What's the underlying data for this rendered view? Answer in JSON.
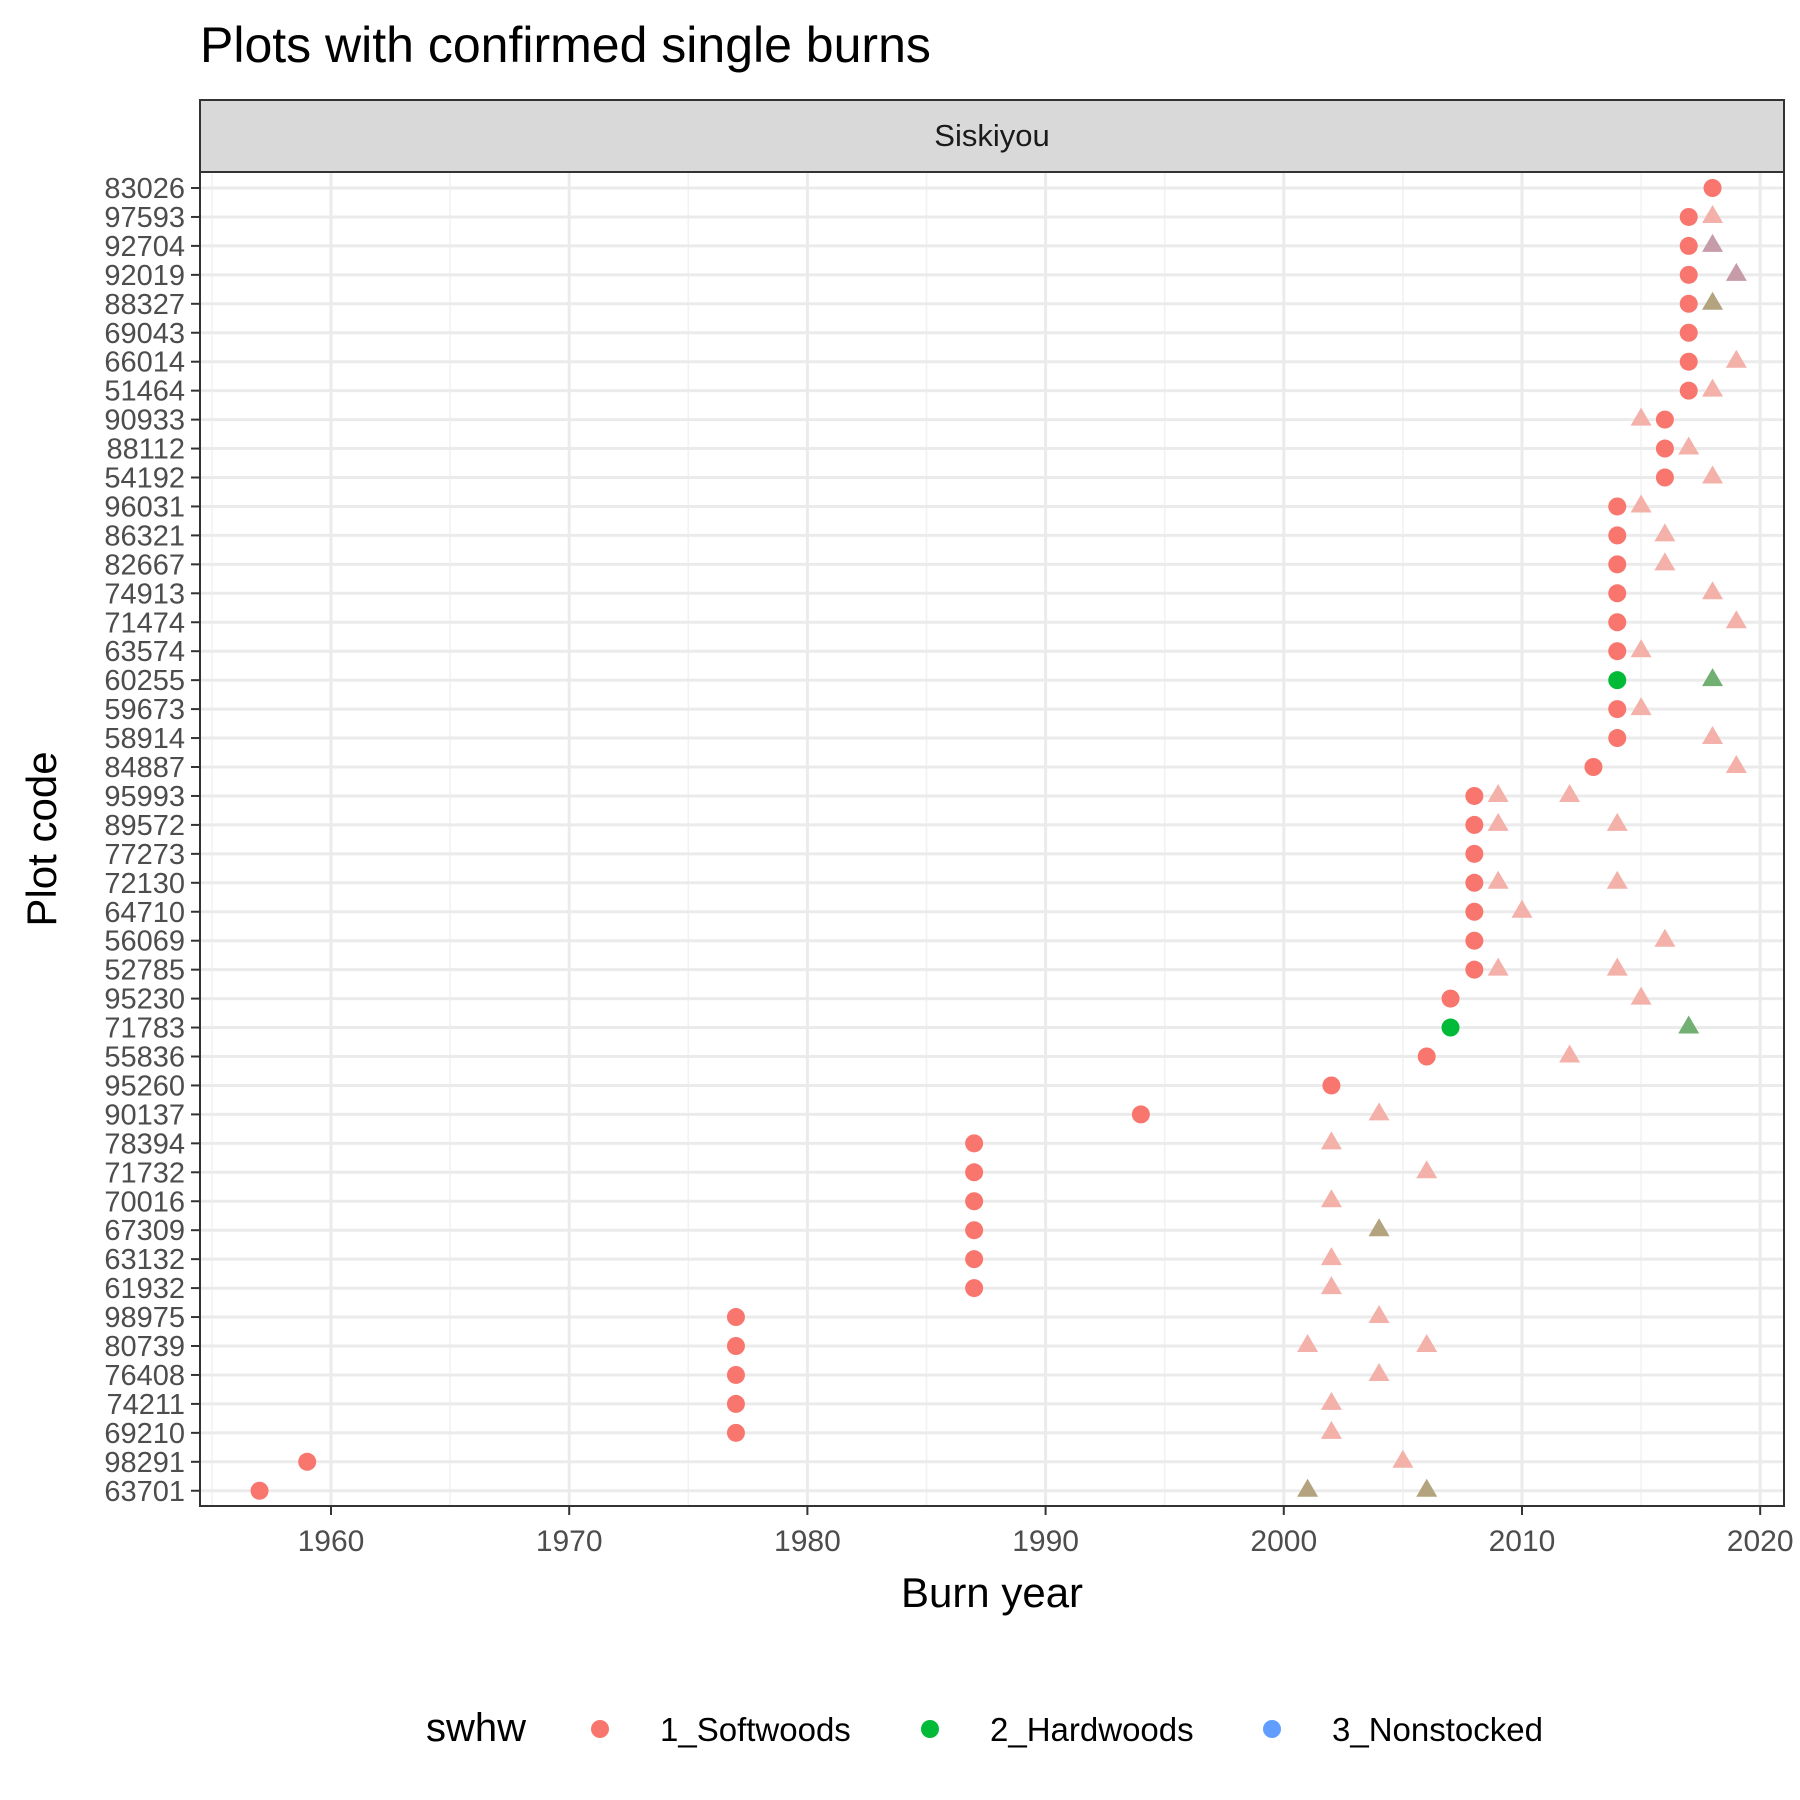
{
  "chart_data": {
    "type": "scatter",
    "title": "Plots with confirmed single burns",
    "facet": "Siskiyou",
    "xlabel": "Burn year",
    "ylabel": "Plot code",
    "xlim": [
      1954.5,
      2021
    ],
    "x_ticks": [
      1960,
      1970,
      1980,
      1990,
      2000,
      2010,
      2020
    ],
    "grid": true,
    "legend_placement": "bottom",
    "legend": {
      "title": "swhw",
      "entries": [
        {
          "label": "1_Softwoods",
          "color": "#F8766D"
        },
        {
          "label": "2_Hardwoods",
          "color": "#00BA38"
        },
        {
          "label": "3_Nonstocked",
          "color": "#619CFF"
        }
      ]
    },
    "plot_codes": [
      "83026",
      "97593",
      "92704",
      "92019",
      "88327",
      "69043",
      "66014",
      "51464",
      "90933",
      "88112",
      "54192",
      "96031",
      "86321",
      "82667",
      "74913",
      "71474",
      "63574",
      "60255",
      "59673",
      "58914",
      "84887",
      "95993",
      "89572",
      "77273",
      "72130",
      "64710",
      "56069",
      "52785",
      "95230",
      "71783",
      "55836",
      "95260",
      "90137",
      "78394",
      "71732",
      "70016",
      "67309",
      "63132",
      "61932",
      "98975",
      "80739",
      "76408",
      "74211",
      "69210",
      "98291",
      "63701"
    ],
    "burns": [
      {
        "plot": "83026",
        "year": 2018,
        "swhw": "1_Softwoods"
      },
      {
        "plot": "97593",
        "year": 2017,
        "swhw": "1_Softwoods"
      },
      {
        "plot": "92704",
        "year": 2017,
        "swhw": "1_Softwoods"
      },
      {
        "plot": "92019",
        "year": 2017,
        "swhw": "1_Softwoods"
      },
      {
        "plot": "88327",
        "year": 2017,
        "swhw": "1_Softwoods"
      },
      {
        "plot": "69043",
        "year": 2017,
        "swhw": "1_Softwoods"
      },
      {
        "plot": "66014",
        "year": 2017,
        "swhw": "1_Softwoods"
      },
      {
        "plot": "51464",
        "year": 2017,
        "swhw": "1_Softwoods"
      },
      {
        "plot": "90933",
        "year": 2016,
        "swhw": "1_Softwoods"
      },
      {
        "plot": "88112",
        "year": 2016,
        "swhw": "1_Softwoods"
      },
      {
        "plot": "54192",
        "year": 2016,
        "swhw": "1_Softwoods"
      },
      {
        "plot": "96031",
        "year": 2014,
        "swhw": "1_Softwoods"
      },
      {
        "plot": "86321",
        "year": 2014,
        "swhw": "1_Softwoods"
      },
      {
        "plot": "82667",
        "year": 2014,
        "swhw": "1_Softwoods"
      },
      {
        "plot": "74913",
        "year": 2014,
        "swhw": "1_Softwoods"
      },
      {
        "plot": "71474",
        "year": 2014,
        "swhw": "1_Softwoods"
      },
      {
        "plot": "63574",
        "year": 2014,
        "swhw": "1_Softwoods"
      },
      {
        "plot": "60255",
        "year": 2014,
        "swhw": "2_Hardwoods"
      },
      {
        "plot": "59673",
        "year": 2014,
        "swhw": "1_Softwoods"
      },
      {
        "plot": "58914",
        "year": 2014,
        "swhw": "1_Softwoods"
      },
      {
        "plot": "84887",
        "year": 2013,
        "swhw": "1_Softwoods"
      },
      {
        "plot": "95993",
        "year": 2008,
        "swhw": "1_Softwoods"
      },
      {
        "plot": "89572",
        "year": 2008,
        "swhw": "1_Softwoods"
      },
      {
        "plot": "77273",
        "year": 2008,
        "swhw": "1_Softwoods"
      },
      {
        "plot": "72130",
        "year": 2008,
        "swhw": "1_Softwoods"
      },
      {
        "plot": "64710",
        "year": 2008,
        "swhw": "1_Softwoods"
      },
      {
        "plot": "56069",
        "year": 2008,
        "swhw": "1_Softwoods"
      },
      {
        "plot": "52785",
        "year": 2008,
        "swhw": "1_Softwoods"
      },
      {
        "plot": "95230",
        "year": 2007,
        "swhw": "1_Softwoods"
      },
      {
        "plot": "71783",
        "year": 2007,
        "swhw": "2_Hardwoods"
      },
      {
        "plot": "55836",
        "year": 2006,
        "swhw": "1_Softwoods"
      },
      {
        "plot": "95260",
        "year": 2002,
        "swhw": "1_Softwoods"
      },
      {
        "plot": "90137",
        "year": 1994,
        "swhw": "1_Softwoods"
      },
      {
        "plot": "78394",
        "year": 1987,
        "swhw": "1_Softwoods"
      },
      {
        "plot": "71732",
        "year": 1987,
        "swhw": "1_Softwoods"
      },
      {
        "plot": "70016",
        "year": 1987,
        "swhw": "1_Softwoods"
      },
      {
        "plot": "67309",
        "year": 1987,
        "swhw": "1_Softwoods"
      },
      {
        "plot": "63132",
        "year": 1987,
        "swhw": "1_Softwoods"
      },
      {
        "plot": "61932",
        "year": 1987,
        "swhw": "1_Softwoods"
      },
      {
        "plot": "98975",
        "year": 1977,
        "swhw": "1_Softwoods"
      },
      {
        "plot": "80739",
        "year": 1977,
        "swhw": "1_Softwoods"
      },
      {
        "plot": "76408",
        "year": 1977,
        "swhw": "1_Softwoods"
      },
      {
        "plot": "74211",
        "year": 1977,
        "swhw": "1_Softwoods"
      },
      {
        "plot": "69210",
        "year": 1977,
        "swhw": "1_Softwoods"
      },
      {
        "plot": "98291",
        "year": 1959,
        "swhw": "1_Softwoods"
      },
      {
        "plot": "63701",
        "year": 1957,
        "swhw": "1_Softwoods"
      }
    ],
    "measurements": [
      {
        "plot": "97593",
        "year": 2018,
        "color": "#F4B1AA"
      },
      {
        "plot": "92704",
        "year": 2018,
        "color": "#C79CA9"
      },
      {
        "plot": "92019",
        "year": 2019,
        "color": "#C79CA9"
      },
      {
        "plot": "88327",
        "year": 2018,
        "color": "#B3A37E"
      },
      {
        "plot": "66014",
        "year": 2019,
        "color": "#F4B1AA"
      },
      {
        "plot": "51464",
        "year": 2018,
        "color": "#F4B1AA"
      },
      {
        "plot": "90933",
        "year": 2015,
        "color": "#F4B1AA"
      },
      {
        "plot": "88112",
        "year": 2017,
        "color": "#F4B1AA"
      },
      {
        "plot": "54192",
        "year": 2018,
        "color": "#F4B1AA"
      },
      {
        "plot": "96031",
        "year": 2015,
        "color": "#F4B1AA"
      },
      {
        "plot": "86321",
        "year": 2016,
        "color": "#F4B1AA"
      },
      {
        "plot": "82667",
        "year": 2016,
        "color": "#F4B1AA"
      },
      {
        "plot": "74913",
        "year": 2018,
        "color": "#F4B1AA"
      },
      {
        "plot": "71474",
        "year": 2019,
        "color": "#F4B1AA"
      },
      {
        "plot": "63574",
        "year": 2015,
        "color": "#F4B1AA"
      },
      {
        "plot": "60255",
        "year": 2018,
        "color": "#72AF72"
      },
      {
        "plot": "59673",
        "year": 2015,
        "color": "#F4B1AA"
      },
      {
        "plot": "58914",
        "year": 2018,
        "color": "#F4B1AA"
      },
      {
        "plot": "84887",
        "year": 2019,
        "color": "#F4B1AA"
      },
      {
        "plot": "95993",
        "year": 2009,
        "color": "#F4B1AA"
      },
      {
        "plot": "95993",
        "year": 2012,
        "color": "#F4B1AA"
      },
      {
        "plot": "89572",
        "year": 2009,
        "color": "#F4B1AA"
      },
      {
        "plot": "89572",
        "year": 2014,
        "color": "#F4B1AA"
      },
      {
        "plot": "72130",
        "year": 2009,
        "color": "#F4B1AA"
      },
      {
        "plot": "72130",
        "year": 2014,
        "color": "#F4B1AA"
      },
      {
        "plot": "64710",
        "year": 2010,
        "color": "#F4B1AA"
      },
      {
        "plot": "56069",
        "year": 2016,
        "color": "#F4B1AA"
      },
      {
        "plot": "52785",
        "year": 2009,
        "color": "#F4B1AA"
      },
      {
        "plot": "52785",
        "year": 2014,
        "color": "#F4B1AA"
      },
      {
        "plot": "95230",
        "year": 2015,
        "color": "#F4B1AA"
      },
      {
        "plot": "71783",
        "year": 2017,
        "color": "#72AF72"
      },
      {
        "plot": "55836",
        "year": 2012,
        "color": "#F4B1AA"
      },
      {
        "plot": "90137",
        "year": 2004,
        "color": "#F4B1AA"
      },
      {
        "plot": "78394",
        "year": 2002,
        "color": "#F4B1AA"
      },
      {
        "plot": "71732",
        "year": 2006,
        "color": "#F4B1AA"
      },
      {
        "plot": "70016",
        "year": 2002,
        "color": "#F4B1AA"
      },
      {
        "plot": "67309",
        "year": 2004,
        "color": "#B3A37E"
      },
      {
        "plot": "63132",
        "year": 2002,
        "color": "#F4B1AA"
      },
      {
        "plot": "61932",
        "year": 2002,
        "color": "#F4B1AA"
      },
      {
        "plot": "98975",
        "year": 2004,
        "color": "#F4B1AA"
      },
      {
        "plot": "80739",
        "year": 2001,
        "color": "#F4B1AA"
      },
      {
        "plot": "80739",
        "year": 2006,
        "color": "#F4B1AA"
      },
      {
        "plot": "76408",
        "year": 2004,
        "color": "#F4B1AA"
      },
      {
        "plot": "74211",
        "year": 2002,
        "color": "#F4B1AA"
      },
      {
        "plot": "69210",
        "year": 2002,
        "color": "#F4B1AA"
      },
      {
        "plot": "98291",
        "year": 2005,
        "color": "#F4B1AA"
      },
      {
        "plot": "63701",
        "year": 2001,
        "color": "#B3A37E"
      },
      {
        "plot": "63701",
        "year": 2006,
        "color": "#B3A37E"
      }
    ]
  }
}
